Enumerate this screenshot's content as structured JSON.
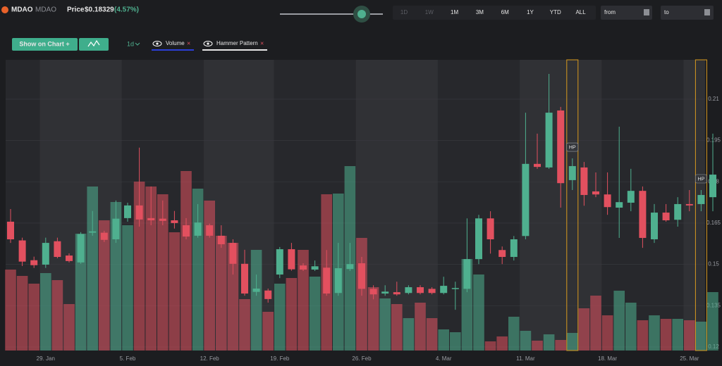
{
  "header": {
    "logo": "MDAO",
    "symbol": "MDAO",
    "price_label": "Price",
    "price": "$0.18329",
    "change": "(4.57%)"
  },
  "toolbar": {
    "ranges": [
      "1D",
      "1W",
      "1M",
      "3M",
      "6M",
      "1Y",
      "YTD",
      "ALL"
    ],
    "from": "from",
    "to": "to",
    "show_on_chart": "Show on Chart +",
    "interval": "1d",
    "indicators": [
      "Volume",
      "Hammer Pattern"
    ]
  },
  "chart_data": {
    "type": "candlestick",
    "categories": [
      null,
      null,
      null,
      "29. Jan",
      null,
      null,
      null,
      null,
      null,
      null,
      "5. Feb",
      null,
      null,
      null,
      null,
      null,
      null,
      "12. Feb",
      null,
      null,
      null,
      null,
      null,
      "19. Feb",
      null,
      null,
      null,
      null,
      null,
      null,
      "26. Feb",
      null,
      null,
      null,
      null,
      null,
      null,
      "4. Mar",
      null,
      null,
      null,
      null,
      null,
      null,
      "11. Mar",
      null,
      null,
      null,
      null,
      null,
      null,
      "18. Mar",
      null,
      null,
      null,
      null,
      null,
      null,
      "25. Mar",
      null,
      null
    ],
    "open": [
      0.1655,
      0.1587,
      0.1515,
      0.1499,
      0.1584,
      0.1532,
      0.1507,
      0.1615,
      0.1615,
      0.1591,
      0.1668,
      0.1714,
      0.1668,
      0.1666,
      0.166,
      0.1642,
      0.1604,
      0.1642,
      0.1604,
      0.1578,
      0.1502,
      0.14,
      0.1405,
      0.1463,
      0.1555,
      0.1496,
      0.1481,
      0.1488,
      0.1396,
      0.1483,
      0.1504,
      0.1411,
      0.1394,
      0.1399,
      0.1396,
      0.1417,
      0.1411,
      0.1396,
      0.1411,
      0.1411,
      0.1519,
      0.1667,
      0.1552,
      0.1527,
      0.1603,
      0.1865,
      0.1852,
      0.2059,
      0.1806,
      0.1852,
      0.1765,
      0.1754,
      0.1706,
      0.1724,
      0.1767,
      0.1591,
      0.1688,
      0.1662,
      0.1719,
      0.1719,
      0.1744
    ],
    "high": [
      0.1701,
      0.1597,
      0.1528,
      0.1597,
      0.1597,
      0.154,
      0.1617,
      0.1694,
      0.1622,
      0.1732,
      0.1724,
      0.1924,
      0.1783,
      0.1732,
      0.1694,
      0.1668,
      0.1719,
      0.1648,
      0.1642,
      0.1591,
      0.1553,
      0.1463,
      0.1412,
      0.1563,
      0.1578,
      0.1504,
      0.1514,
      0.1552,
      0.1578,
      0.1578,
      0.1527,
      0.1424,
      0.1424,
      0.1437,
      0.1424,
      0.1424,
      0.1417,
      0.1455,
      0.1437,
      0.1667,
      0.168,
      0.1693,
      0.1565,
      0.1603,
      0.2051,
      0.1975,
      0.2192,
      0.2072,
      0.1885,
      0.1872,
      0.1834,
      0.1834,
      0.2,
      0.1847,
      0.1783,
      0.1719,
      0.1719,
      0.1744,
      0.177,
      0.177,
      0.1975
    ],
    "low": [
      0.1578,
      0.1494,
      0.1487,
      0.1487,
      0.1522,
      0.1507,
      0.1502,
      0.1604,
      0.1581,
      0.1578,
      0.1655,
      0.1637,
      0.1642,
      0.1642,
      0.163,
      0.1591,
      0.1597,
      0.1597,
      0.156,
      0.1463,
      0.1386,
      0.1386,
      0.1361,
      0.145,
      0.1477,
      0.1476,
      0.1476,
      0.1386,
      0.1386,
      0.1476,
      0.1386,
      0.1373,
      0.1386,
      0.1386,
      0.1391,
      0.1391,
      0.1391,
      0.1391,
      0.1335,
      0.1399,
      0.1501,
      0.1539,
      0.1501,
      0.1514,
      0.1591,
      0.1847,
      0.1847,
      0.1706,
      0.177,
      0.1713,
      0.1744,
      0.168,
      0.1596,
      0.1693,
      0.156,
      0.1578,
      0.1655,
      0.1637,
      0.1693,
      0.1693,
      0.1693
    ],
    "close": [
      0.1591,
      0.151,
      0.1497,
      0.1578,
      0.1527,
      0.1512,
      0.161,
      0.162,
      0.1589,
      0.1666,
      0.1714,
      0.1663,
      0.166,
      0.1658,
      0.165,
      0.1601,
      0.1652,
      0.1604,
      0.1573,
      0.1502,
      0.1394,
      0.1412,
      0.1374,
      0.1555,
      0.1482,
      0.1481,
      0.1493,
      0.1394,
      0.1486,
      0.1501,
      0.1411,
      0.1391,
      0.1401,
      0.1391,
      0.1417,
      0.1396,
      0.1396,
      0.1422,
      0.1414,
      0.1519,
      0.1667,
      0.1591,
      0.1527,
      0.1591,
      0.1865,
      0.1854,
      0.2051,
      0.1795,
      0.1857,
      0.1752,
      0.1754,
      0.1708,
      0.1726,
      0.1767,
      0.1596,
      0.1688,
      0.166,
      0.1719,
      0.1714,
      0.1752,
      0.1826
    ],
    "volume": [
      115,
      106,
      95,
      110,
      100,
      66,
      166,
      233,
      185,
      211,
      178,
      240,
      233,
      222,
      168,
      255,
      230,
      213,
      163,
      153,
      73,
      143,
      55,
      95,
      103,
      143,
      105,
      222,
      223,
      262,
      160,
      90,
      74,
      66,
      46,
      68,
      46,
      30,
      26,
      130,
      108,
      13,
      20,
      48,
      28,
      14,
      23,
      15,
      25,
      60,
      78,
      50,
      85,
      68,
      43,
      50,
      45,
      45,
      43,
      41,
      83
    ],
    "volume_lim": [
      0,
      413
    ],
    "ylim": [
      0.1187,
      0.2243
    ],
    "yticks": [
      0.12,
      0.135,
      0.15,
      0.165,
      0.18,
      0.195,
      0.21
    ],
    "grid": true,
    "up_color": "#4fb08f",
    "down_color": "#e2505f",
    "pattern": {
      "label": "HP",
      "indices": [
        48,
        59
      ],
      "color": "#d99a1e"
    }
  }
}
